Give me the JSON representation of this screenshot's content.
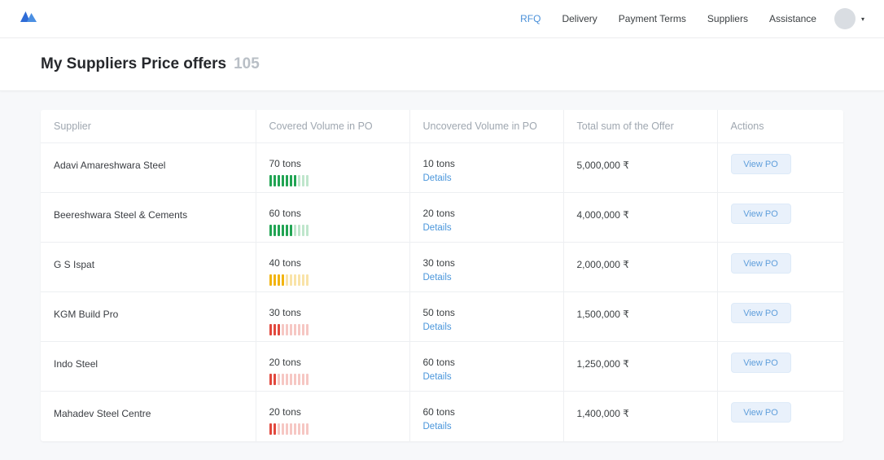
{
  "nav": {
    "items": [
      {
        "label": "RFQ",
        "active": true
      },
      {
        "label": "Delivery",
        "active": false
      },
      {
        "label": "Payment Terms",
        "active": false
      },
      {
        "label": "Suppliers",
        "active": false
      },
      {
        "label": "Assistance",
        "active": false
      }
    ]
  },
  "header": {
    "title": "My Suppliers Price offers",
    "count": "105"
  },
  "table": {
    "columns": [
      "Supplier",
      "Covered Volume in PO",
      "Uncovered Volume in PO",
      "Total sum of the Offer",
      "Actions"
    ],
    "details_label": "Details",
    "view_po_label": "View PO",
    "gauge_segments": 10,
    "rows": [
      {
        "supplier": "Adavi Amareshwara Steel",
        "covered": "70 tons",
        "covered_value": 70,
        "gauge_color": "green",
        "uncovered": "10 tons",
        "total": "5,000,000 ₹"
      },
      {
        "supplier": "Beereshwara Steel & Cements",
        "covered": "60 tons",
        "covered_value": 60,
        "gauge_color": "green",
        "uncovered": "20 tons",
        "total": "4,000,000 ₹"
      },
      {
        "supplier": "G S Ispat",
        "covered": "40 tons",
        "covered_value": 40,
        "gauge_color": "yellow",
        "uncovered": "30 tons",
        "total": "2,000,000 ₹"
      },
      {
        "supplier": "KGM Build Pro",
        "covered": "30 tons",
        "covered_value": 30,
        "gauge_color": "red",
        "uncovered": "50 tons",
        "total": "1,500,000 ₹"
      },
      {
        "supplier": "Indo Steel",
        "covered": "20 tons",
        "covered_value": 20,
        "gauge_color": "red",
        "uncovered": "60 tons",
        "total": "1,250,000 ₹"
      },
      {
        "supplier": "Mahadev Steel Centre",
        "covered": "20 tons",
        "covered_value": 20,
        "gauge_color": "red",
        "uncovered": "60 tons",
        "total": "1,400,000 ₹"
      }
    ]
  },
  "colors": {
    "accent": "#4a90d9",
    "gauge_green": "#21a453",
    "gauge_yellow": "#f2b411",
    "gauge_red": "#e2483d",
    "button_bg": "#e9f1fb",
    "button_text": "#5f9edb"
  }
}
